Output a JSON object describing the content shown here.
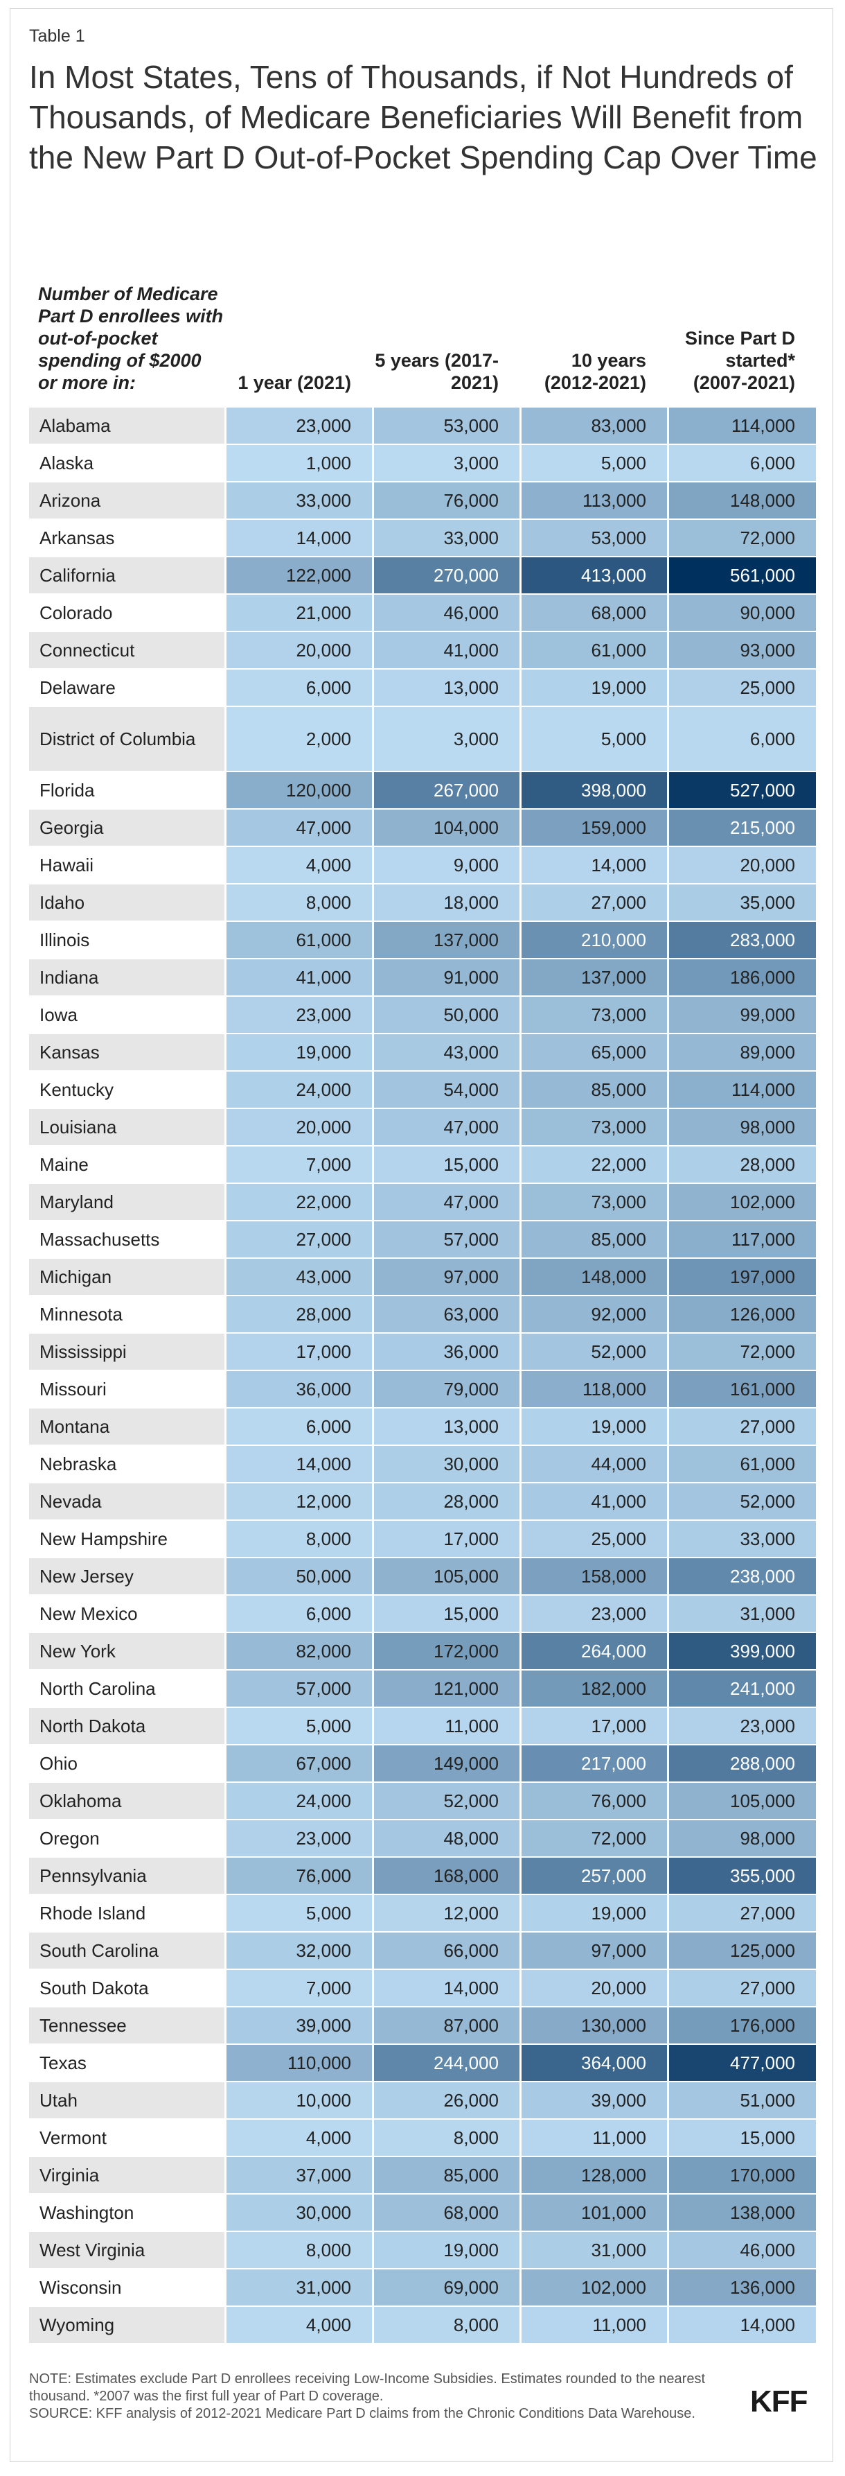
{
  "table_label": "Table 1",
  "title": "In Most States, Tens of Thousands, if Not Hundreds of Thousands, of Medicare Beneficiaries Will Benefit from the New Part D Out-of-Pocket Spending Cap Over Time",
  "header": {
    "row_label": "Number of Medicare Part D enrollees with out-of-pocket spending of $2000 or more in:",
    "col1": "1 year (2021)",
    "col2": "5 years (2017-2021)",
    "col3": "10 years (2012-2021)",
    "col4": "Since Part D started* (2007-2021)"
  },
  "chart_data": {
    "type": "table",
    "columns": [
      "1 year (2021)",
      "5 years (2017-2021)",
      "10 years (2012-2021)",
      "Since Part D started* (2007-2021)"
    ],
    "rows": [
      {
        "state": "Alabama",
        "values": [
          23000,
          53000,
          83000,
          114000
        ]
      },
      {
        "state": "Alaska",
        "values": [
          1000,
          3000,
          5000,
          6000
        ]
      },
      {
        "state": "Arizona",
        "values": [
          33000,
          76000,
          113000,
          148000
        ]
      },
      {
        "state": "Arkansas",
        "values": [
          14000,
          33000,
          53000,
          72000
        ]
      },
      {
        "state": "California",
        "values": [
          122000,
          270000,
          413000,
          561000
        ]
      },
      {
        "state": "Colorado",
        "values": [
          21000,
          46000,
          68000,
          90000
        ]
      },
      {
        "state": "Connecticut",
        "values": [
          20000,
          41000,
          61000,
          93000
        ]
      },
      {
        "state": "Delaware",
        "values": [
          6000,
          13000,
          19000,
          25000
        ]
      },
      {
        "state": "District of Columbia",
        "values": [
          2000,
          3000,
          5000,
          6000
        ]
      },
      {
        "state": "Florida",
        "values": [
          120000,
          267000,
          398000,
          527000
        ]
      },
      {
        "state": "Georgia",
        "values": [
          47000,
          104000,
          159000,
          215000
        ]
      },
      {
        "state": "Hawaii",
        "values": [
          4000,
          9000,
          14000,
          20000
        ]
      },
      {
        "state": "Idaho",
        "values": [
          8000,
          18000,
          27000,
          35000
        ]
      },
      {
        "state": "Illinois",
        "values": [
          61000,
          137000,
          210000,
          283000
        ]
      },
      {
        "state": "Indiana",
        "values": [
          41000,
          91000,
          137000,
          186000
        ]
      },
      {
        "state": "Iowa",
        "values": [
          23000,
          50000,
          73000,
          99000
        ]
      },
      {
        "state": "Kansas",
        "values": [
          19000,
          43000,
          65000,
          89000
        ]
      },
      {
        "state": "Kentucky",
        "values": [
          24000,
          54000,
          85000,
          114000
        ]
      },
      {
        "state": "Louisiana",
        "values": [
          20000,
          47000,
          73000,
          98000
        ]
      },
      {
        "state": "Maine",
        "values": [
          7000,
          15000,
          22000,
          28000
        ]
      },
      {
        "state": "Maryland",
        "values": [
          22000,
          47000,
          73000,
          102000
        ]
      },
      {
        "state": "Massachusetts",
        "values": [
          27000,
          57000,
          85000,
          117000
        ]
      },
      {
        "state": "Michigan",
        "values": [
          43000,
          97000,
          148000,
          197000
        ]
      },
      {
        "state": "Minnesota",
        "values": [
          28000,
          63000,
          92000,
          126000
        ]
      },
      {
        "state": "Mississippi",
        "values": [
          17000,
          36000,
          52000,
          72000
        ]
      },
      {
        "state": "Missouri",
        "values": [
          36000,
          79000,
          118000,
          161000
        ]
      },
      {
        "state": "Montana",
        "values": [
          6000,
          13000,
          19000,
          27000
        ]
      },
      {
        "state": "Nebraska",
        "values": [
          14000,
          30000,
          44000,
          61000
        ]
      },
      {
        "state": "Nevada",
        "values": [
          12000,
          28000,
          41000,
          52000
        ]
      },
      {
        "state": "New Hampshire",
        "values": [
          8000,
          17000,
          25000,
          33000
        ]
      },
      {
        "state": "New Jersey",
        "values": [
          50000,
          105000,
          158000,
          238000
        ]
      },
      {
        "state": "New Mexico",
        "values": [
          6000,
          15000,
          23000,
          31000
        ]
      },
      {
        "state": "New York",
        "values": [
          82000,
          172000,
          264000,
          399000
        ]
      },
      {
        "state": "North Carolina",
        "values": [
          57000,
          121000,
          182000,
          241000
        ]
      },
      {
        "state": "North Dakota",
        "values": [
          5000,
          11000,
          17000,
          23000
        ]
      },
      {
        "state": "Ohio",
        "values": [
          67000,
          149000,
          217000,
          288000
        ]
      },
      {
        "state": "Oklahoma",
        "values": [
          24000,
          52000,
          76000,
          105000
        ]
      },
      {
        "state": "Oregon",
        "values": [
          23000,
          48000,
          72000,
          98000
        ]
      },
      {
        "state": "Pennsylvania",
        "values": [
          76000,
          168000,
          257000,
          355000
        ]
      },
      {
        "state": "Rhode Island",
        "values": [
          5000,
          12000,
          19000,
          27000
        ]
      },
      {
        "state": "South Carolina",
        "values": [
          32000,
          66000,
          97000,
          125000
        ]
      },
      {
        "state": "South Dakota",
        "values": [
          7000,
          14000,
          20000,
          27000
        ]
      },
      {
        "state": "Tennessee",
        "values": [
          39000,
          87000,
          130000,
          176000
        ]
      },
      {
        "state": "Texas",
        "values": [
          110000,
          244000,
          364000,
          477000
        ]
      },
      {
        "state": "Utah",
        "values": [
          10000,
          26000,
          39000,
          51000
        ]
      },
      {
        "state": "Vermont",
        "values": [
          4000,
          8000,
          11000,
          15000
        ]
      },
      {
        "state": "Virginia",
        "values": [
          37000,
          85000,
          128000,
          170000
        ]
      },
      {
        "state": "Washington",
        "values": [
          30000,
          68000,
          101000,
          138000
        ]
      },
      {
        "state": "West Virginia",
        "values": [
          8000,
          19000,
          31000,
          46000
        ]
      },
      {
        "state": "Wisconsin",
        "values": [
          31000,
          69000,
          102000,
          136000
        ]
      },
      {
        "state": "Wyoming",
        "values": [
          4000,
          8000,
          11000,
          14000
        ]
      }
    ]
  },
  "colors": {
    "scale_low": "#bcdcf3",
    "scale_high": "#00305e",
    "state_bg_even": "#e6e6e6",
    "state_bg_odd": "#ffffff"
  },
  "footer": {
    "note": "NOTE: Estimates exclude Part D enrollees receiving Low-Income Subsidies. Estimates rounded to the nearest thousand. *2007 was the first full year of Part D coverage.",
    "source": "SOURCE: KFF analysis of 2012-2021 Medicare Part D claims from the Chronic Conditions Data Warehouse.",
    "logo": "KFF"
  }
}
